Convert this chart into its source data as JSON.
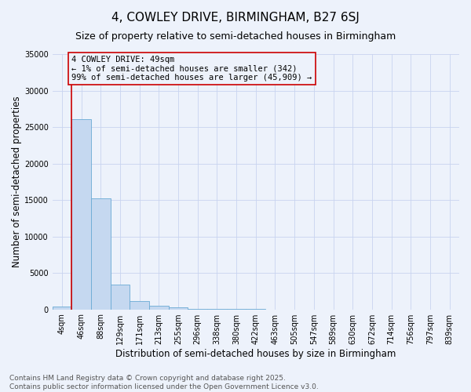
{
  "title": "4, COWLEY DRIVE, BIRMINGHAM, B27 6SJ",
  "subtitle": "Size of property relative to semi-detached houses in Birmingham",
  "xlabel": "Distribution of semi-detached houses by size in Birmingham",
  "ylabel": "Number of semi-detached properties",
  "property_label": "4 COWLEY DRIVE: 49sqm",
  "annotation_line1": "← 1% of semi-detached houses are smaller (342)",
  "annotation_line2": "99% of semi-detached houses are larger (45,909) →",
  "footer_line1": "Contains HM Land Registry data © Crown copyright and database right 2025.",
  "footer_line2": "Contains public sector information licensed under the Open Government Licence v3.0.",
  "bar_color": "#c5d8f0",
  "bar_edge_color": "#6aaad4",
  "redline_color": "#cc0000",
  "bg_color": "#edf2fb",
  "grid_color": "#c8d4f0",
  "bin_labels": [
    "4sqm",
    "46sqm",
    "88sqm",
    "129sqm",
    "171sqm",
    "213sqm",
    "255sqm",
    "296sqm",
    "338sqm",
    "380sqm",
    "422sqm",
    "463sqm",
    "505sqm",
    "547sqm",
    "589sqm",
    "630sqm",
    "672sqm",
    "714sqm",
    "756sqm",
    "797sqm",
    "839sqm"
  ],
  "bar_heights": [
    400,
    26100,
    15200,
    3400,
    1100,
    500,
    280,
    50,
    30,
    15,
    10,
    5,
    3,
    2,
    2,
    1,
    1,
    1,
    0,
    0,
    0
  ],
  "ylim": [
    0,
    35000
  ],
  "yticks": [
    0,
    5000,
    10000,
    15000,
    20000,
    25000,
    30000,
    35000
  ],
  "redline_x": 0.5,
  "title_fontsize": 11,
  "subtitle_fontsize": 9,
  "label_fontsize": 8.5,
  "tick_fontsize": 7,
  "annot_fontsize": 7.5,
  "footer_fontsize": 6.5
}
